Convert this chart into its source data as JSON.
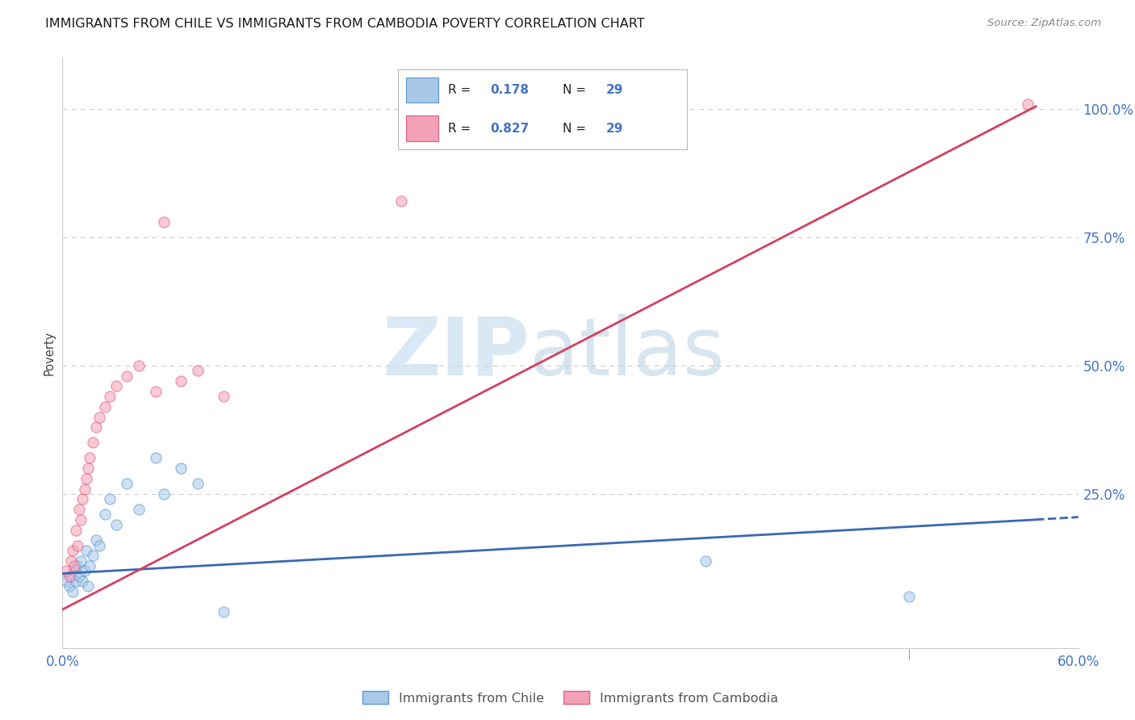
{
  "title": "IMMIGRANTS FROM CHILE VS IMMIGRANTS FROM CAMBODIA POVERTY CORRELATION CHART",
  "source": "Source: ZipAtlas.com",
  "ylabel": "Poverty",
  "xlim": [
    0.0,
    0.6
  ],
  "ylim": [
    -0.05,
    1.1
  ],
  "chile_color_fill": "#a8c8e8",
  "chile_color_edge": "#5b9bd5",
  "cambodia_color_fill": "#f4a0b8",
  "cambodia_color_edge": "#e06080",
  "trendline_chile_color": "#3a68b4",
  "trendline_cambodia_color": "#d44060",
  "marker_size": 90,
  "marker_alpha": 0.55,
  "background_color": "#ffffff",
  "grid_color": "#cccccc",
  "chile_scatter_x": [
    0.002,
    0.004,
    0.005,
    0.006,
    0.007,
    0.008,
    0.009,
    0.01,
    0.011,
    0.012,
    0.013,
    0.014,
    0.015,
    0.016,
    0.018,
    0.02,
    0.022,
    0.025,
    0.028,
    0.032,
    0.038,
    0.045,
    0.055,
    0.06,
    0.07,
    0.08,
    0.095,
    0.38,
    0.5
  ],
  "chile_scatter_y": [
    0.08,
    0.07,
    0.09,
    0.06,
    0.1,
    0.08,
    0.11,
    0.09,
    0.12,
    0.08,
    0.1,
    0.14,
    0.07,
    0.11,
    0.13,
    0.16,
    0.15,
    0.21,
    0.24,
    0.19,
    0.27,
    0.22,
    0.32,
    0.25,
    0.3,
    0.27,
    0.02,
    0.12,
    0.05
  ],
  "cambodia_scatter_x": [
    0.002,
    0.004,
    0.005,
    0.006,
    0.007,
    0.008,
    0.009,
    0.01,
    0.011,
    0.012,
    0.013,
    0.014,
    0.015,
    0.016,
    0.018,
    0.02,
    0.022,
    0.025,
    0.028,
    0.032,
    0.038,
    0.045,
    0.055,
    0.06,
    0.07,
    0.08,
    0.095,
    0.2,
    0.57
  ],
  "cambodia_scatter_y": [
    0.1,
    0.09,
    0.12,
    0.14,
    0.11,
    0.18,
    0.15,
    0.22,
    0.2,
    0.24,
    0.26,
    0.28,
    0.3,
    0.32,
    0.35,
    0.38,
    0.4,
    0.42,
    0.44,
    0.46,
    0.48,
    0.5,
    0.45,
    0.78,
    0.47,
    0.49,
    0.44,
    0.82,
    1.01
  ],
  "trendline_chile_x0": 0.0,
  "trendline_chile_y0": 0.095,
  "trendline_chile_x1": 0.575,
  "trendline_chile_y1": 0.2,
  "trendline_chile_dash_x1": 0.6,
  "trendline_chile_dash_y1": 0.205,
  "trendline_cambodia_x0": 0.0,
  "trendline_cambodia_y0": 0.025,
  "trendline_cambodia_x1": 0.575,
  "trendline_cambodia_y1": 1.005,
  "legend_R1": "0.178",
  "legend_N1": "29",
  "legend_R2": "0.827",
  "legend_N2": "29"
}
